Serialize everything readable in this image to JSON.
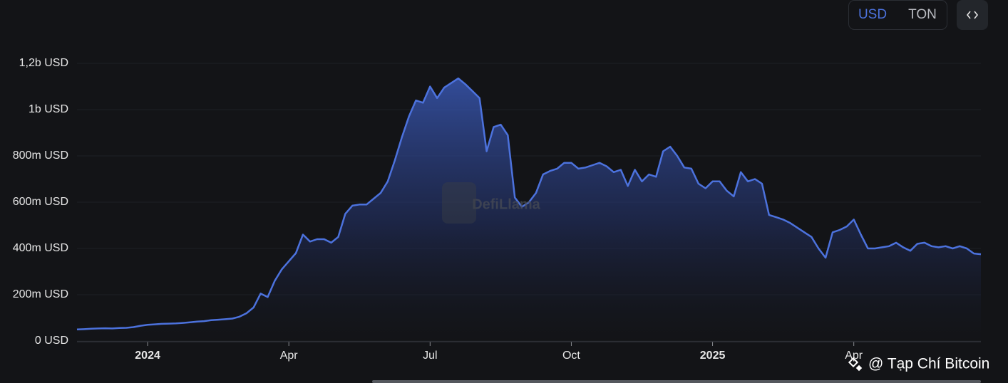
{
  "chart_data": {
    "type": "area",
    "color": "#4c72dd",
    "grid": true,
    "currency_options": [
      "USD",
      "TON"
    ],
    "watermark": "DefiLlama",
    "credit": "@ Tạp Chí Bitcoin",
    "categories": [
      null,
      null,
      null,
      null,
      null,
      null,
      null,
      null,
      null,
      null,
      "2024",
      null,
      null,
      null,
      null,
      null,
      null,
      null,
      null,
      null,
      null,
      null,
      null,
      null,
      null,
      null,
      null,
      null,
      null,
      null,
      "Apr",
      null,
      null,
      null,
      null,
      null,
      null,
      null,
      null,
      null,
      null,
      null,
      null,
      null,
      null,
      null,
      null,
      null,
      null,
      null,
      "Jul",
      null,
      null,
      null,
      null,
      null,
      null,
      null,
      null,
      null,
      null,
      null,
      null,
      null,
      null,
      null,
      null,
      null,
      null,
      null,
      "Oct",
      null,
      null,
      null,
      null,
      null,
      null,
      null,
      null,
      null,
      null,
      null,
      null,
      null,
      null,
      null,
      null,
      null,
      null,
      null,
      "2025",
      null,
      null,
      null,
      null,
      null,
      null,
      null,
      null,
      null,
      null,
      null,
      null,
      null,
      null,
      null,
      null,
      null,
      null,
      null,
      "Apr",
      null,
      null,
      null,
      null,
      null,
      null,
      null,
      null,
      null,
      null,
      null,
      null,
      null,
      null,
      null,
      null,
      null,
      null
    ],
    "values": [
      50000000,
      51000000,
      53000000,
      54000000,
      55000000,
      54000000,
      56000000,
      57000000,
      60000000,
      66000000,
      70000000,
      72000000,
      74000000,
      75000000,
      76000000,
      78000000,
      81000000,
      84000000,
      86000000,
      90000000,
      92000000,
      94000000,
      97000000,
      105000000,
      120000000,
      145000000,
      205000000,
      190000000,
      260000000,
      310000000,
      345000000,
      380000000,
      460000000,
      430000000,
      440000000,
      440000000,
      425000000,
      450000000,
      550000000,
      585000000,
      590000000,
      590000000,
      615000000,
      640000000,
      690000000,
      780000000,
      880000000,
      970000000,
      1040000000,
      1030000000,
      1100000000,
      1050000000,
      1095000000,
      1115000000,
      1135000000,
      1110000000,
      1080000000,
      1050000000,
      820000000,
      925000000,
      935000000,
      890000000,
      620000000,
      580000000,
      600000000,
      640000000,
      720000000,
      735000000,
      745000000,
      770000000,
      770000000,
      745000000,
      750000000,
      760000000,
      770000000,
      755000000,
      730000000,
      740000000,
      670000000,
      740000000,
      690000000,
      720000000,
      710000000,
      820000000,
      840000000,
      800000000,
      750000000,
      745000000,
      680000000,
      660000000,
      690000000,
      690000000,
      650000000,
      625000000,
      730000000,
      690000000,
      700000000,
      680000000,
      545000000,
      535000000,
      525000000,
      510000000,
      490000000,
      470000000,
      450000000,
      400000000,
      360000000,
      470000000,
      480000000,
      495000000,
      525000000,
      460000000,
      400000000,
      400000000,
      405000000,
      410000000,
      425000000,
      405000000,
      390000000,
      420000000,
      425000000,
      410000000,
      405000000,
      410000000,
      400000000,
      410000000,
      400000000,
      378000000,
      375000000
    ],
    "ylim": [
      0,
      1200000000
    ],
    "yticks": [
      {
        "value": 0,
        "label": "0 USD"
      },
      {
        "value": 200000000,
        "label": "200m USD"
      },
      {
        "value": 400000000,
        "label": "400m USD"
      },
      {
        "value": 600000000,
        "label": "600m USD"
      },
      {
        "value": 800000000,
        "label": "800m USD"
      },
      {
        "value": 1000000000,
        "label": "1b USD"
      },
      {
        "value": 1200000000,
        "label": "1,2b USD"
      }
    ]
  }
}
